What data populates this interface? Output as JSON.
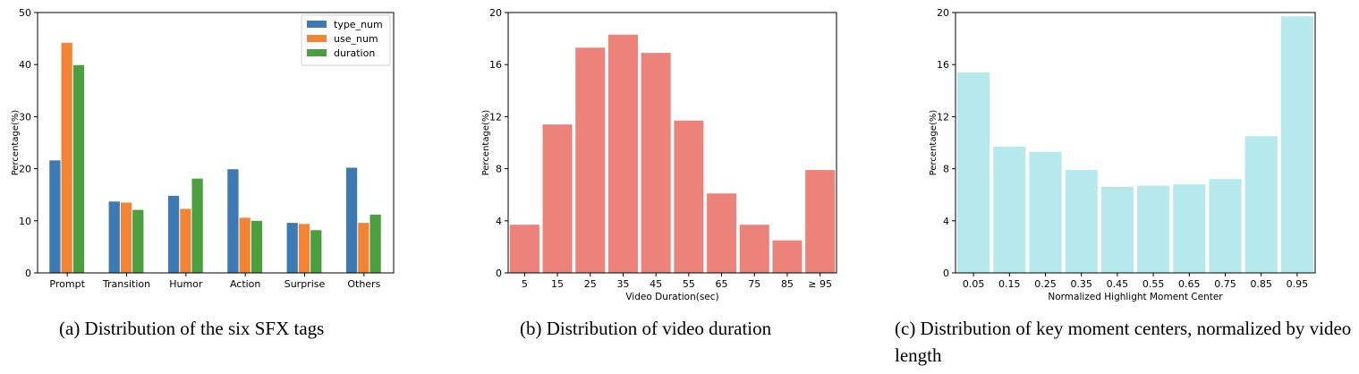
{
  "charts": [
    {
      "chart_data": {
        "type": "bar",
        "categories": [
          "Prompt",
          "Transition",
          "Humor",
          "Action",
          "Surprise",
          "Others"
        ],
        "series": [
          {
            "name": "type_num",
            "color": "#3d79b3",
            "values": [
              21.6,
              13.7,
              14.8,
              19.9,
              9.6,
              20.2
            ]
          },
          {
            "name": "use_num",
            "color": "#f28535",
            "values": [
              44.2,
              13.5,
              12.3,
              10.6,
              9.4,
              9.6
            ]
          },
          {
            "name": "duration",
            "color": "#4c9f3f",
            "values": [
              39.9,
              12.1,
              18.1,
              10.0,
              8.2,
              11.2
            ]
          }
        ],
        "xlabel": "",
        "ylabel": "Percentage(%)",
        "ylim": [
          0,
          50
        ],
        "yticks": [
          "0",
          "10",
          "20",
          "30",
          "40",
          "50"
        ],
        "grid": false,
        "legend": "top-right"
      },
      "caption": "(a) Distribution of the six SFX tags"
    },
    {
      "chart_data": {
        "type": "bar",
        "categories": [
          "5",
          "15",
          "25",
          "35",
          "45",
          "55",
          "65",
          "75",
          "85",
          "≥ 95"
        ],
        "series": [
          {
            "name": "",
            "color": "#ec827a",
            "values": [
              3.7,
              11.4,
              17.3,
              18.3,
              16.9,
              11.7,
              6.1,
              3.7,
              2.5,
              7.9
            ]
          }
        ],
        "xlabel": "Video Duration(sec)",
        "ylabel": "Percentage(%)",
        "ylim": [
          0,
          20
        ],
        "yticks": [
          "0",
          "4",
          "8",
          "12",
          "16",
          "20"
        ],
        "grid": false
      },
      "caption": "(b) Distribution of video duration"
    },
    {
      "chart_data": {
        "type": "bar",
        "categories": [
          "0.05",
          "0.15",
          "0.25",
          "0.35",
          "0.45",
          "0.55",
          "0.65",
          "0.75",
          "0.85",
          "0.95"
        ],
        "series": [
          {
            "name": "",
            "color": "#b5e9ec",
            "values": [
              15.4,
              9.7,
              9.3,
              7.9,
              6.6,
              6.7,
              6.8,
              7.2,
              10.5,
              19.7
            ]
          }
        ],
        "xlabel": "Normalized Highlight Moment Center",
        "ylabel": "Percentage(%)",
        "ylim": [
          0,
          20
        ],
        "yticks": [
          "0",
          "4",
          "8",
          "12",
          "16",
          "20"
        ],
        "grid": false
      },
      "caption": "(c) Distribution of key moment centers, normalized by video length"
    }
  ]
}
